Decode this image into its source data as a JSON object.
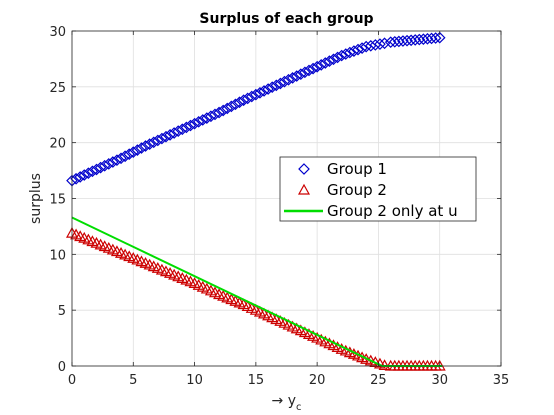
{
  "chart_data": {
    "type": "scatter",
    "title": "Surplus of each group",
    "xlabel": "→ y",
    "xlabel_subscript": "c",
    "ylabel": "surplus",
    "xlim": [
      0,
      35
    ],
    "ylim": [
      0,
      30
    ],
    "xticks": [
      "0",
      "5",
      "10",
      "15",
      "20",
      "25",
      "30",
      "35"
    ],
    "yticks": [
      "0",
      "5",
      "10",
      "15",
      "20",
      "25",
      "30"
    ],
    "grid": true,
    "legend_position": "center-right",
    "series": [
      {
        "name": "Group 1",
        "marker": "diamond",
        "color": "#0000cc",
        "x": [
          0,
          2,
          4,
          6,
          8,
          10,
          12,
          14,
          16,
          18,
          20,
          22,
          24,
          25.5,
          26,
          27,
          28,
          29,
          30
        ],
        "y": [
          16.6,
          17.6,
          18.6,
          19.7,
          20.7,
          21.7,
          22.7,
          23.8,
          24.8,
          25.8,
          26.8,
          27.8,
          28.6,
          28.9,
          29.0,
          29.1,
          29.2,
          29.3,
          29.4
        ]
      },
      {
        "name": "Group 2",
        "marker": "triangle",
        "color": "#cc0000",
        "x": [
          0,
          2,
          4,
          6,
          8,
          10,
          12,
          14,
          16,
          18,
          20,
          22,
          24,
          25.5,
          26,
          27,
          28,
          29,
          30
        ],
        "y": [
          11.9,
          11.0,
          10.1,
          9.2,
          8.3,
          7.4,
          6.4,
          5.5,
          4.5,
          3.5,
          2.5,
          1.5,
          0.6,
          0.05,
          0,
          0,
          0,
          0,
          0
        ]
      },
      {
        "name": "Group 2 only at u",
        "marker": "line",
        "color": "#00dd00",
        "x": [
          0,
          25.3,
          30.2
        ],
        "y": [
          13.3,
          0,
          0
        ]
      }
    ]
  }
}
